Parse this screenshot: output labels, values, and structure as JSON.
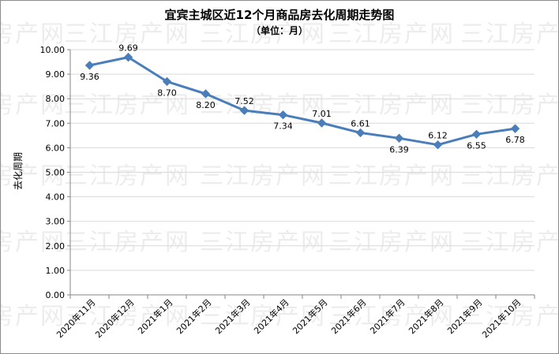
{
  "watermark": "三江房产网",
  "colors": {
    "line": "#4a7ebb",
    "grid": "#d9d9d9",
    "axis": "#868686"
  },
  "chart_data": {
    "type": "line",
    "title": "宜宾主城区近12个月商品房去化周期走势图",
    "subtitle": "（单位：月）",
    "xlabel": "",
    "ylabel": "去化周期",
    "categories": [
      "2020年11月",
      "2020年12月",
      "2021年1月",
      "2021年2月",
      "2021年3月",
      "2021年4月",
      "2021年5月",
      "2021年6月",
      "2021年7月",
      "2021年8月",
      "2021年9月",
      "2021年10月"
    ],
    "series": [
      {
        "values": [
          9.36,
          9.69,
          8.7,
          8.2,
          7.52,
          7.34,
          7.01,
          6.61,
          6.39,
          6.12,
          6.55,
          6.78
        ]
      }
    ],
    "data_labels": [
      "9.36",
      "9.69",
      "8.70",
      "8.20",
      "7.52",
      "7.34",
      "7.01",
      "6.61",
      "6.39",
      "6.12",
      "6.55",
      "6.78"
    ],
    "ylim": [
      0,
      10
    ],
    "yticks": [
      "0.00",
      "1.00",
      "2.00",
      "3.00",
      "4.00",
      "5.00",
      "6.00",
      "7.00",
      "8.00",
      "9.00",
      "10.00"
    ],
    "grid": true,
    "legend": "none"
  }
}
